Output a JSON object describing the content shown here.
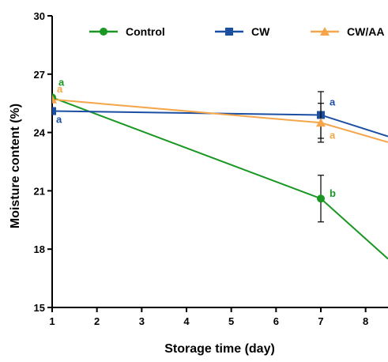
{
  "chart_data": {
    "type": "line",
    "xlabel": "Storage time (day)",
    "ylabel": "Moisture content (%)",
    "xlim": [
      1,
      8.5
    ],
    "ylim": [
      15,
      30
    ],
    "x_ticks": [
      1,
      2,
      3,
      4,
      5,
      6,
      7,
      8
    ],
    "y_ticks": [
      15,
      18,
      21,
      24,
      27,
      30
    ],
    "legend_position": "top",
    "series": [
      {
        "name": "Control",
        "color": "#1a9622",
        "marker": "circle",
        "x": [
          1,
          7,
          8.5
        ],
        "y": [
          25.8,
          20.6,
          17.5
        ],
        "error": [
          null,
          1.2,
          null
        ],
        "labels": [
          "a",
          "b",
          null
        ]
      },
      {
        "name": "CW",
        "color": "#1c4fa3",
        "marker": "square",
        "x": [
          1,
          7,
          8.5
        ],
        "y": [
          25.1,
          24.9,
          23.8
        ],
        "error": [
          null,
          1.2,
          null
        ],
        "labels": [
          "a",
          "a",
          null
        ]
      },
      {
        "name": "CW/AA",
        "color": "#f5a54a",
        "marker": "triangle",
        "x": [
          1,
          7,
          8.5
        ],
        "y": [
          25.7,
          24.5,
          23.5
        ],
        "error": [
          null,
          1.0,
          null
        ],
        "labels": [
          "a",
          "a",
          null
        ]
      }
    ]
  }
}
